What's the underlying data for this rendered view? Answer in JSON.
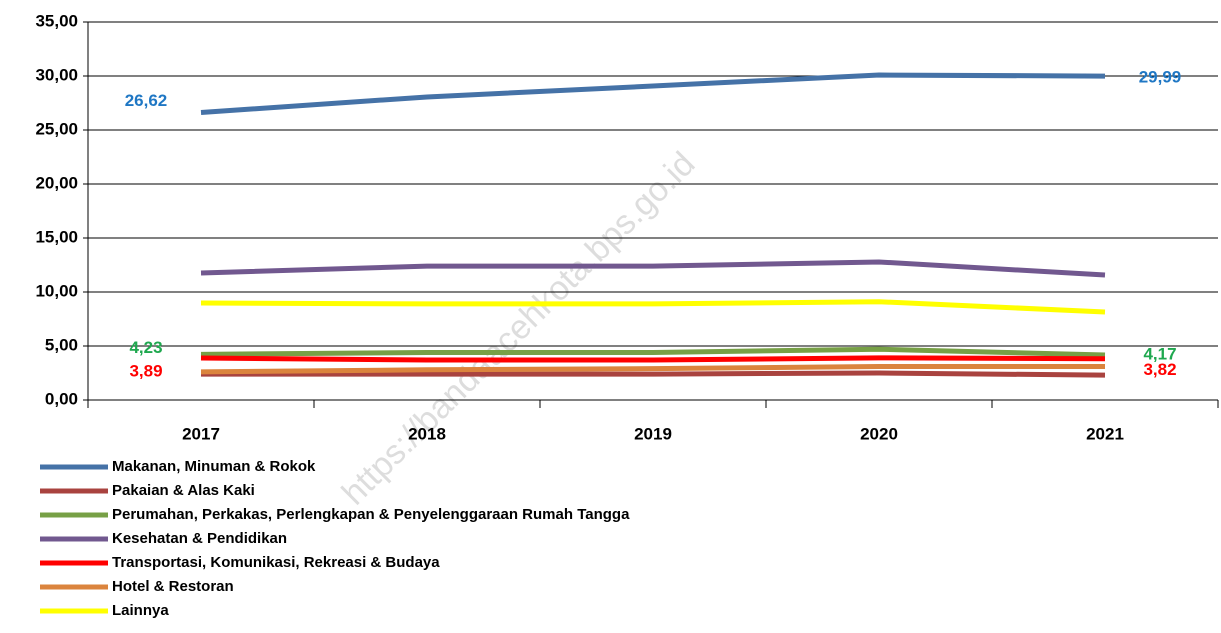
{
  "chart_data": {
    "type": "line",
    "watermark": "https://bandaacehkota.bps.go.id",
    "categories": [
      "2017",
      "2018",
      "2019",
      "2020",
      "2021"
    ],
    "series": [
      {
        "name": "Makanan, Minuman & Rokok",
        "color": "#4572a7",
        "values": [
          26.62,
          28.06,
          29.07,
          30.09,
          29.99
        ],
        "value_labels": [
          "26,62",
          null,
          null,
          null,
          "29,99"
        ],
        "label_color": "#1f77c4"
      },
      {
        "name": "Pakaian & Alas Kaki",
        "color": "#a9433f",
        "values": [
          2.4,
          2.4,
          2.4,
          2.5,
          2.3
        ]
      },
      {
        "name": "Perumahan, Perkakas, Perlengkapan & Penyelenggaraan Rumah Tangga",
        "color": "#77a046",
        "values": [
          4.23,
          4.4,
          4.4,
          4.7,
          4.17
        ],
        "value_labels": [
          "4,23",
          null,
          null,
          null,
          "4,17"
        ],
        "label_color": "#1fa84f"
      },
      {
        "name": "Kesehatan & Pendidikan",
        "color": "#71588f",
        "values": [
          11.76,
          12.4,
          12.4,
          12.78,
          11.57
        ]
      },
      {
        "name": "Transportasi, Komunikasi, Rekreasi & Budaya",
        "color": "#ff0000",
        "values": [
          3.89,
          3.7,
          3.7,
          3.9,
          3.82
        ],
        "value_labels": [
          "3,89",
          null,
          null,
          null,
          "3,82"
        ],
        "label_color": "#ff0000"
      },
      {
        "name": "Hotel & Restoran",
        "color": "#db843d",
        "values": [
          2.6,
          2.8,
          2.9,
          3.1,
          3.1
        ]
      },
      {
        "name": "Lainnya",
        "color": "#ffff00",
        "values": [
          8.98,
          8.9,
          8.9,
          9.1,
          8.15
        ]
      }
    ],
    "ylim": [
      0,
      35
    ],
    "yticks": [
      {
        "value": 0,
        "label": "0,00"
      },
      {
        "value": 5,
        "label": "5,00"
      },
      {
        "value": 10,
        "label": "10,00"
      },
      {
        "value": 15,
        "label": "15,00"
      },
      {
        "value": 20,
        "label": "20,00"
      },
      {
        "value": 25,
        "label": "25,00"
      },
      {
        "value": 30,
        "label": "30,00"
      },
      {
        "value": 35,
        "label": "35,00"
      }
    ],
    "grid": true
  }
}
